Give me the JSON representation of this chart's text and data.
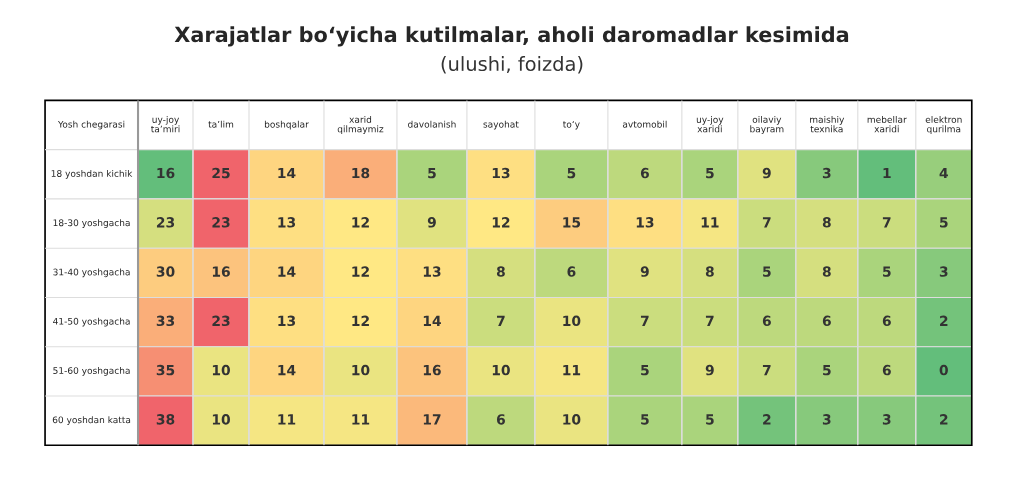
{
  "chart_data": {
    "type": "heatmap",
    "title": "Xarajatlar bo‘yicha kutilmalar, aholi daromadlar kesimida",
    "subtitle": "(ulushi, foizda)",
    "ylabel": "Yosh chegarasi",
    "data_labels": true,
    "categories": [
      "uy-joy\nta’miri",
      "ta’lim",
      "boshqalar",
      "xarid\nqilmaymiz",
      "davolanish",
      "sayohat",
      "to‘y",
      "avtomobil",
      "uy-joy\nxaridi",
      "oilaviy\nbayram",
      "maishiy\ntexnika",
      "mebellar\nxaridi",
      "elektron\nqurilma"
    ],
    "y_categories": [
      "18 yoshdan kichik",
      "18-30 yoshgacha",
      "31-40 yoshgacha",
      "41-50 yoshgacha",
      "51-60 yoshgacha",
      "60 yoshdan katta"
    ],
    "cells": [
      [
        16,
        25,
        14,
        18,
        5,
        13,
        5,
        6,
        5,
        9,
        3,
        1,
        4
      ],
      [
        23,
        23,
        13,
        12,
        9,
        12,
        15,
        13,
        11,
        7,
        8,
        7,
        5
      ],
      [
        30,
        16,
        14,
        12,
        13,
        8,
        6,
        9,
        8,
        5,
        8,
        5,
        3
      ],
      [
        33,
        23,
        13,
        12,
        14,
        7,
        10,
        7,
        7,
        6,
        6,
        6,
        2
      ],
      [
        35,
        10,
        14,
        10,
        16,
        10,
        11,
        5,
        9,
        7,
        5,
        6,
        0
      ],
      [
        38,
        10,
        11,
        11,
        17,
        6,
        10,
        5,
        5,
        2,
        3,
        3,
        2
      ]
    ]
  }
}
